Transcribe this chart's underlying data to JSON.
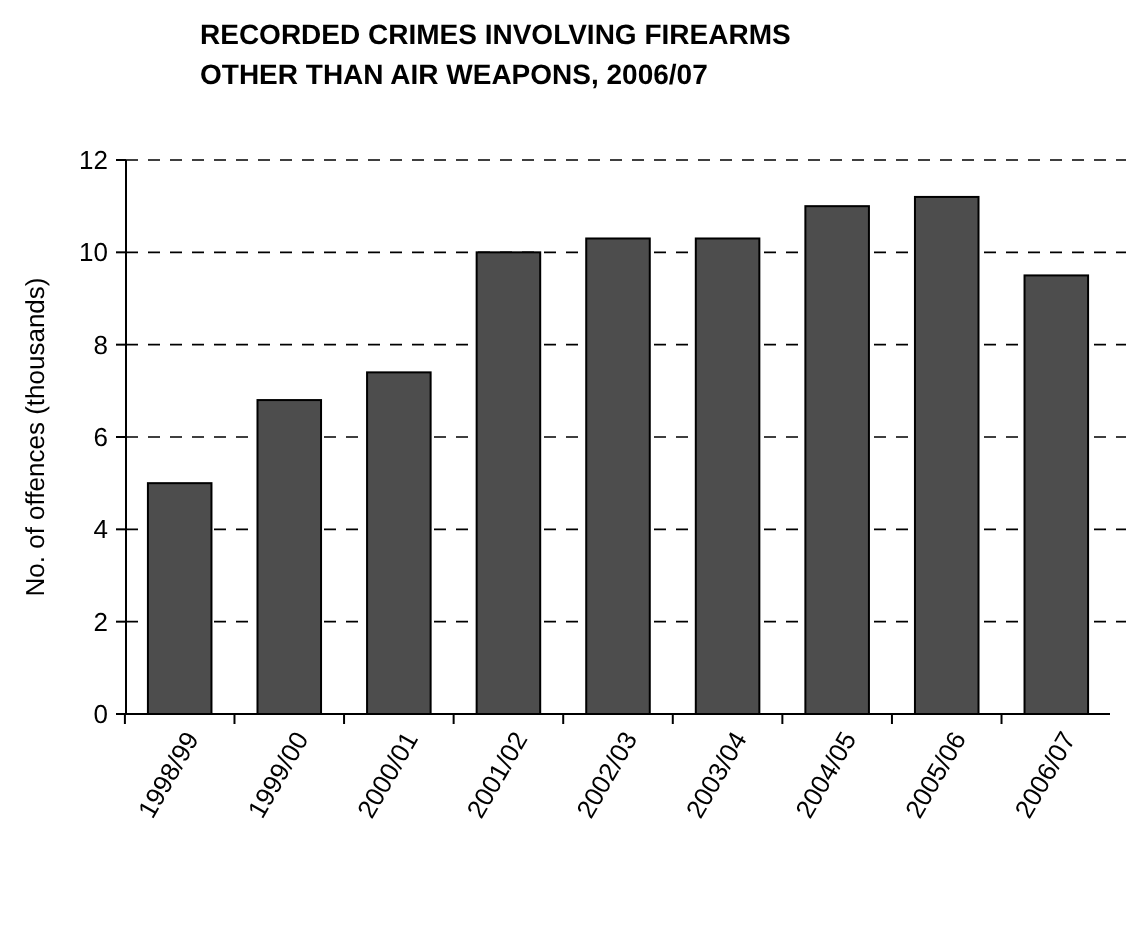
{
  "chart_data": {
    "type": "bar",
    "title": "RECORDED CRIMES INVOLVING FIREARMS\nOTHER THAN AIR WEAPONS, 2006/07",
    "ylabel": "No. of offences (thousands)",
    "categories": [
      "1998/99",
      "1999/00",
      "2000/01",
      "2001/02",
      "2002/03",
      "2003/04",
      "2004/05",
      "2005/06",
      "2006/07"
    ],
    "values": [
      5.0,
      6.8,
      7.4,
      10.0,
      10.3,
      10.3,
      11.0,
      11.2,
      9.5
    ],
    "color": "#4d4d4d",
    "ylim": [
      0,
      12
    ],
    "yticks": [
      0,
      2,
      4,
      6,
      8,
      10,
      12
    ],
    "grid": "y"
  }
}
